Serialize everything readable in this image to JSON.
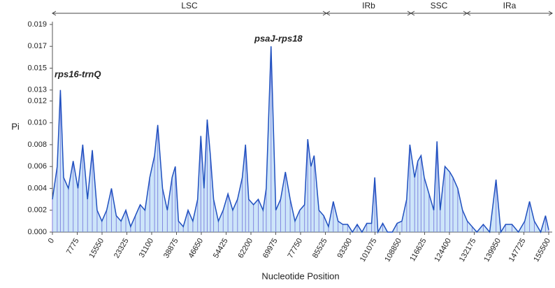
{
  "chart_data": {
    "type": "line",
    "x_label": "Nucleotide Position",
    "y_label": "Pi",
    "annotations": [
      "rps16-trnQ",
      "psaJ-rps18"
    ],
    "regions": [
      {
        "name": "LSC",
        "start": 0,
        "end": 85850
      },
      {
        "name": "IRb",
        "start": 85850,
        "end": 112350
      },
      {
        "name": "SSC",
        "start": 112350,
        "end": 129870
      },
      {
        "name": "IRa",
        "start": 129870,
        "end": 156600
      }
    ],
    "x": [
      0,
      1500,
      2500,
      3500,
      5000,
      6500,
      8000,
      9500,
      11000,
      12500,
      14000,
      15500,
      17000,
      18500,
      20000,
      21500,
      23000,
      24500,
      26000,
      27500,
      29000,
      30500,
      32000,
      33000,
      34500,
      36000,
      37500,
      38500,
      39500,
      41000,
      42500,
      44000,
      45500,
      46500,
      47500,
      48500,
      49500,
      50500,
      52000,
      53500,
      55000,
      56500,
      58000,
      59500,
      60500,
      61500,
      63000,
      64500,
      66000,
      67000,
      68500,
      70000,
      71500,
      73000,
      74500,
      76000,
      77500,
      79000,
      80000,
      81000,
      82000,
      83500,
      85000,
      86500,
      88000,
      89500,
      91000,
      92500,
      94000,
      95500,
      97000,
      98500,
      100000,
      101000,
      102000,
      103500,
      105000,
      106500,
      108000,
      109500,
      111000,
      112000,
      113500,
      114500,
      115500,
      116500,
      118000,
      119500,
      120500,
      121500,
      123000,
      124500,
      125500,
      127000,
      128500,
      130000,
      131500,
      133000,
      135000,
      137000,
      139000,
      140500,
      142000,
      144000,
      146000,
      148000,
      149500,
      151000,
      153000,
      154500,
      155500
    ],
    "series": [
      {
        "name": "Pi",
        "color": "#1f4fbf",
        "values": [
          0.003,
          0.006,
          0.013,
          0.005,
          0.004,
          0.0065,
          0.004,
          0.008,
          0.003,
          0.0075,
          0.002,
          0.001,
          0.002,
          0.004,
          0.0015,
          0.001,
          0.002,
          0.0005,
          0.0015,
          0.0025,
          0.002,
          0.005,
          0.007,
          0.0098,
          0.004,
          0.002,
          0.005,
          0.006,
          0.001,
          0.0005,
          0.002,
          0.001,
          0.003,
          0.0088,
          0.004,
          0.0103,
          0.007,
          0.003,
          0.001,
          0.002,
          0.0035,
          0.002,
          0.003,
          0.005,
          0.008,
          0.003,
          0.0025,
          0.003,
          0.002,
          0.004,
          0.017,
          0.002,
          0.003,
          0.0055,
          0.003,
          0.001,
          0.002,
          0.0025,
          0.0085,
          0.006,
          0.007,
          0.002,
          0.0015,
          0.0005,
          0.0028,
          0.001,
          0.0007,
          0.0007,
          0,
          0.0007,
          0,
          0.0008,
          0.0008,
          0.005,
          0,
          0.0008,
          0,
          0,
          0.0008,
          0.001,
          0.003,
          0.008,
          0.005,
          0.0065,
          0.007,
          0.005,
          0.0035,
          0.002,
          0.0083,
          0.002,
          0.006,
          0.0055,
          0.005,
          0.004,
          0.002,
          0.001,
          0.0005,
          0,
          0.0007,
          0,
          0.0048,
          0,
          0.0007,
          0.0007,
          0,
          0.001,
          0.0028,
          0.001,
          0,
          0.0015,
          0.0002
        ]
      }
    ],
    "xlim": [
      0,
      156600
    ],
    "ylim": [
      0,
      0.019
    ],
    "xticks": [
      0,
      7775,
      15550,
      23325,
      31100,
      38875,
      46650,
      54425,
      62200,
      69975,
      77750,
      85525,
      93300,
      101075,
      108850,
      116625,
      124400,
      132175,
      139950,
      147725,
      155500
    ],
    "yticks": [
      {
        "value": 0,
        "label": "0.000"
      },
      0.002,
      0.004,
      0.006,
      0.008,
      {
        "value": 0.01,
        "label": "0.010"
      },
      0.012,
      0.013,
      0.015,
      0.017,
      0.019
    ]
  }
}
